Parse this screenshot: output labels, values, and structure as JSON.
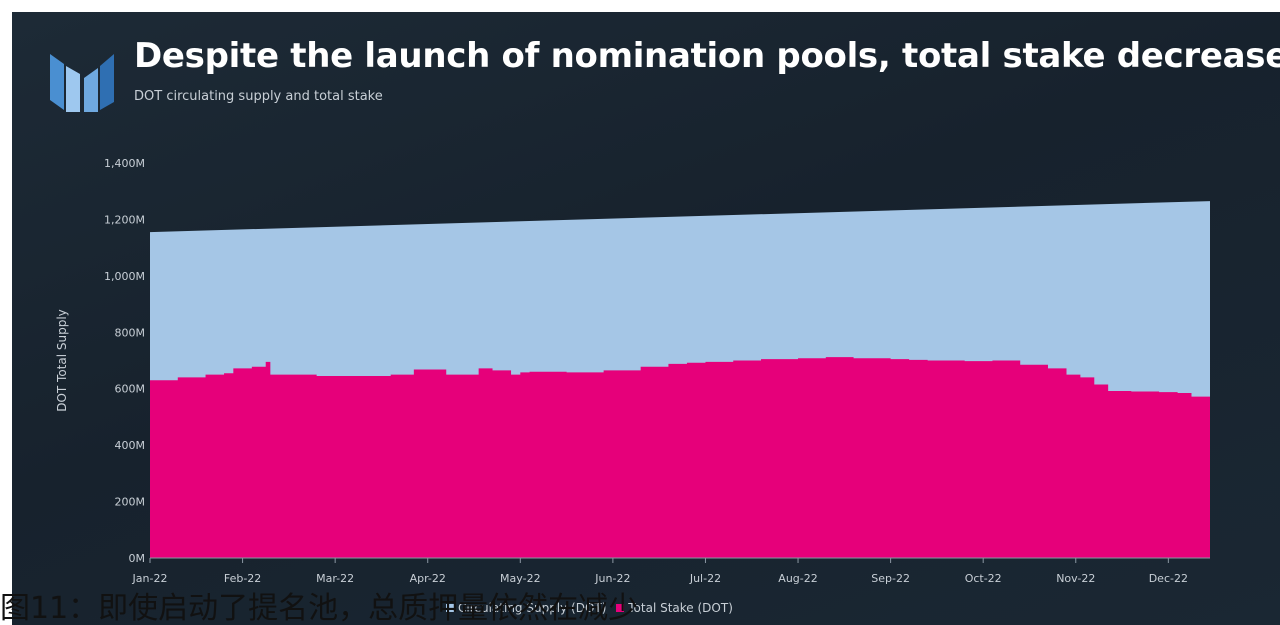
{
  "title": "Despite the launch of nomination pools, total stake decreased",
  "subtitle": "DOT circulating supply and total stake",
  "caption": "图11：即使启动了提名池，总质押量依然在减少",
  "legend": [
    {
      "label": "Circulating Supply (DOT)",
      "color": "#a5c6e6"
    },
    {
      "label": "Total Stake (DOT)",
      "color": "#e6007a"
    }
  ],
  "chart_data": {
    "type": "area",
    "title": "Despite the launch of nomination pools, total stake decreased",
    "subtitle": "DOT circulating supply and total stake",
    "ylabel": "DOT Total Supply",
    "xlabel": "",
    "ylim": [
      0,
      1400
    ],
    "y_ticks": [
      "0M",
      "200M",
      "400M",
      "600M",
      "800M",
      "1,000M",
      "1,200M",
      "1,400M"
    ],
    "x_ticks": [
      "Jan-22",
      "Feb-22",
      "Mar-22",
      "Apr-22",
      "May-22",
      "Jun-22",
      "Jul-22",
      "Aug-22",
      "Sep-22",
      "Oct-22",
      "Nov-22",
      "Dec-22"
    ],
    "x_range": [
      0,
      11.45
    ],
    "grid": false,
    "legend_position": "bottom",
    "series": [
      {
        "name": "Circulating Supply (DOT)",
        "color": "#a5c6e6",
        "x": [
          0,
          11.45
        ],
        "values": [
          1155,
          1265
        ]
      },
      {
        "name": "Total Stake (DOT)",
        "color": "#e6007a",
        "x": [
          0,
          0.3,
          0.6,
          0.8,
          0.9,
          1.1,
          1.25,
          1.3,
          1.45,
          1.8,
          2.2,
          2.6,
          2.85,
          3.0,
          3.2,
          3.4,
          3.55,
          3.7,
          3.9,
          4.0,
          4.1,
          4.3,
          4.5,
          4.7,
          4.9,
          5.1,
          5.3,
          5.6,
          5.8,
          6.0,
          6.3,
          6.6,
          7.0,
          7.3,
          7.6,
          8.0,
          8.2,
          8.4,
          8.8,
          9.1,
          9.4,
          9.7,
          9.9,
          10.05,
          10.2,
          10.35,
          10.6,
          10.9,
          11.1,
          11.25,
          11.45
        ],
        "values": [
          630,
          640,
          650,
          655,
          672,
          678,
          695,
          650,
          650,
          645,
          645,
          650,
          668,
          668,
          650,
          650,
          672,
          665,
          650,
          658,
          660,
          660,
          658,
          658,
          665,
          665,
          678,
          688,
          692,
          695,
          700,
          705,
          708,
          712,
          708,
          705,
          702,
          700,
          698,
          700,
          685,
          672,
          650,
          640,
          615,
          592,
          590,
          588,
          585,
          572,
          568
        ]
      }
    ]
  }
}
